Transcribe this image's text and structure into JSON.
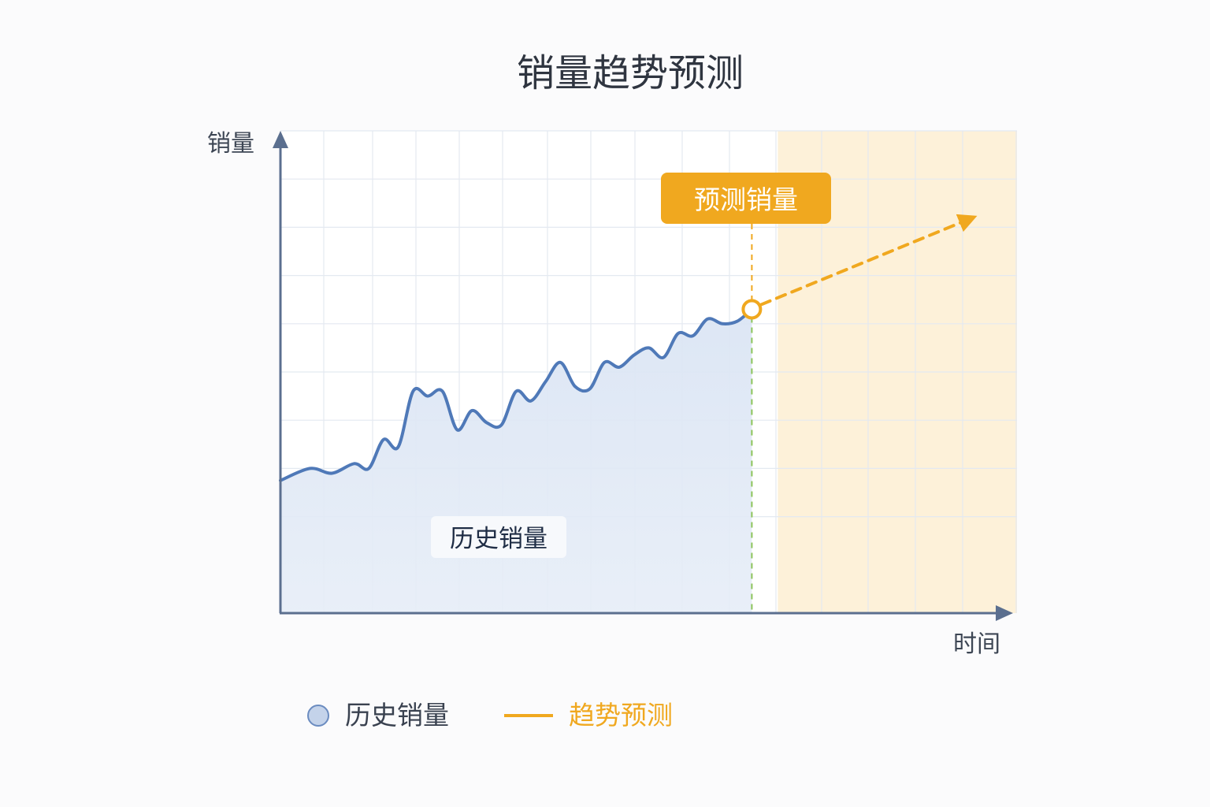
{
  "title": "销量趋势预测",
  "colors": {
    "history": "#4f79b8",
    "history_fill": "#dfe8f5",
    "forecast": "#f0a81f",
    "forecast_bg": "#fdf1d9",
    "divider": "#8cc45a",
    "axis": "#5b6f8f",
    "grid": "#e4e9f1",
    "text": "#2e3440"
  },
  "chart_data": {
    "type": "line",
    "xlabel": "时间",
    "ylabel": "销量",
    "grid": true,
    "legend_position": "bottom",
    "ylim": [
      0,
      100
    ],
    "x": [
      0,
      2,
      3.5,
      5,
      6,
      7,
      8,
      9,
      10,
      11,
      12,
      13,
      14,
      15,
      16,
      17,
      18,
      19,
      20,
      21,
      22,
      23,
      24,
      25,
      26,
      27,
      28,
      29,
      30,
      31,
      32
    ],
    "series": [
      {
        "name": "历史销量",
        "values": [
          27.5,
          30,
          29,
          31,
          30,
          36,
          34.5,
          46,
          45,
          46,
          38,
          42,
          39.5,
          39,
          46,
          44,
          48,
          52,
          47,
          46.5,
          52,
          51,
          53.5,
          55,
          53,
          58,
          57.5,
          61,
          60,
          60.5,
          63
        ]
      },
      {
        "name": "趋势预测",
        "x": [
          32,
          47
        ],
        "values": [
          63,
          82
        ]
      }
    ],
    "forecast_start_x": 32,
    "forecast_end_x": 50,
    "annotations": [
      {
        "text": "预测销量",
        "x": 32,
        "y": 63
      },
      {
        "text": "历史销量",
        "x": 15,
        "y": 15
      }
    ]
  },
  "legend": [
    {
      "label": "历史销量",
      "marker": "circle"
    },
    {
      "label": "趋势预测",
      "marker": "line"
    }
  ]
}
